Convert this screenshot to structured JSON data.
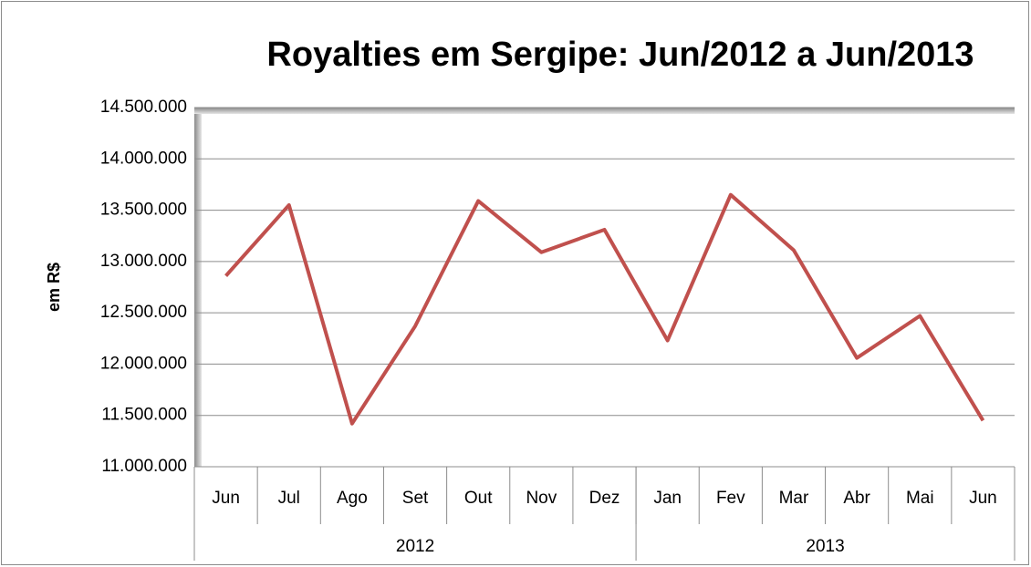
{
  "chart_data": {
    "type": "line",
    "title": "Royalties em Sergipe: Jun/2012 a Jun/2013",
    "y_label": "em R$",
    "categories": [
      "Jun",
      "Jul",
      "Ago",
      "Set",
      "Out",
      "Nov",
      "Dez",
      "Jan",
      "Fev",
      "Mar",
      "Abr",
      "Mai",
      "Jun"
    ],
    "groups": [
      {
        "label": "2012",
        "count": 7
      },
      {
        "label": "2013",
        "count": 6
      }
    ],
    "series": [
      {
        "name": "Royalties",
        "color": "#c0504d",
        "values": [
          12860000,
          13550000,
          11420000,
          12370000,
          13590000,
          13090000,
          13310000,
          12230000,
          13650000,
          13110000,
          12060000,
          12470000,
          11450000
        ]
      }
    ],
    "ylim": [
      11000000,
      14500000
    ],
    "yticks": [
      {
        "value": 11000000,
        "label": "11.000.000"
      },
      {
        "value": 11500000,
        "label": "11.500.000"
      },
      {
        "value": 12000000,
        "label": "12.000.000"
      },
      {
        "value": 12500000,
        "label": "12.500.000"
      },
      {
        "value": 13000000,
        "label": "13.000.000"
      },
      {
        "value": 13500000,
        "label": "13.500.000"
      },
      {
        "value": 14000000,
        "label": "14.000.000"
      },
      {
        "value": 14500000,
        "label": "14.500.000"
      }
    ],
    "grid": true
  }
}
